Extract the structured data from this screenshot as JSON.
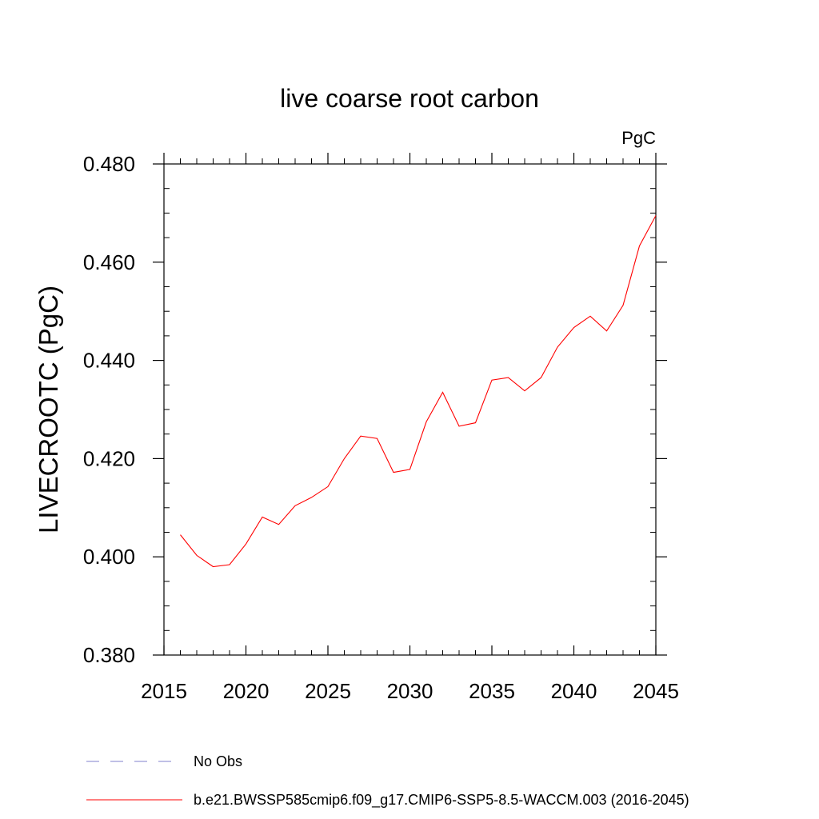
{
  "chart_data": {
    "type": "line",
    "title": "live coarse root carbon",
    "unit_label": "PgC",
    "ylabel": "LIVECROOTC  (PgC)",
    "xlabel": "",
    "xlim": [
      2015,
      2045
    ],
    "ylim": [
      0.38,
      0.48
    ],
    "x_ticks": [
      2015,
      2020,
      2025,
      2030,
      2035,
      2040,
      2045
    ],
    "x_tick_labels": [
      "2015",
      "2020",
      "2025",
      "2030",
      "2035",
      "2040",
      "2045"
    ],
    "y_ticks": [
      0.38,
      0.4,
      0.42,
      0.44,
      0.46,
      0.48
    ],
    "y_tick_labels": [
      "0.380",
      "0.400",
      "0.420",
      "0.440",
      "0.460",
      "0.480"
    ],
    "grid": false,
    "legend_position": "bottom",
    "series": [
      {
        "name": "b.e21.BWSSP585cmip6.f09_g17.CMIP6-SSP5-8.5-WACCM.003 (2016-2045)",
        "color": "#ff0000",
        "style": "solid",
        "x": [
          2016,
          2017,
          2018,
          2019,
          2020,
          2021,
          2022,
          2023,
          2024,
          2025,
          2026,
          2027,
          2028,
          2029,
          2030,
          2031,
          2032,
          2033,
          2034,
          2035,
          2036,
          2037,
          2038,
          2039,
          2040,
          2041,
          2042,
          2043,
          2044,
          2045
        ],
        "y": [
          0.4045,
          0.4003,
          0.398,
          0.3984,
          0.4026,
          0.4081,
          0.4066,
          0.4104,
          0.4121,
          0.4143,
          0.42,
          0.4246,
          0.4241,
          0.4172,
          0.4178,
          0.4275,
          0.4335,
          0.4266,
          0.4273,
          0.436,
          0.4365,
          0.4338,
          0.4365,
          0.4427,
          0.4467,
          0.449,
          0.446,
          0.4512,
          0.4633,
          0.4695
        ]
      }
    ],
    "legend": [
      {
        "label": "No Obs",
        "color": "#8080cc",
        "style": "dashed"
      },
      {
        "label": "b.e21.BWSSP585cmip6.f09_g17.CMIP6-SSP5-8.5-WACCM.003 (2016-2045)",
        "color": "#ff0000",
        "style": "solid"
      }
    ]
  }
}
